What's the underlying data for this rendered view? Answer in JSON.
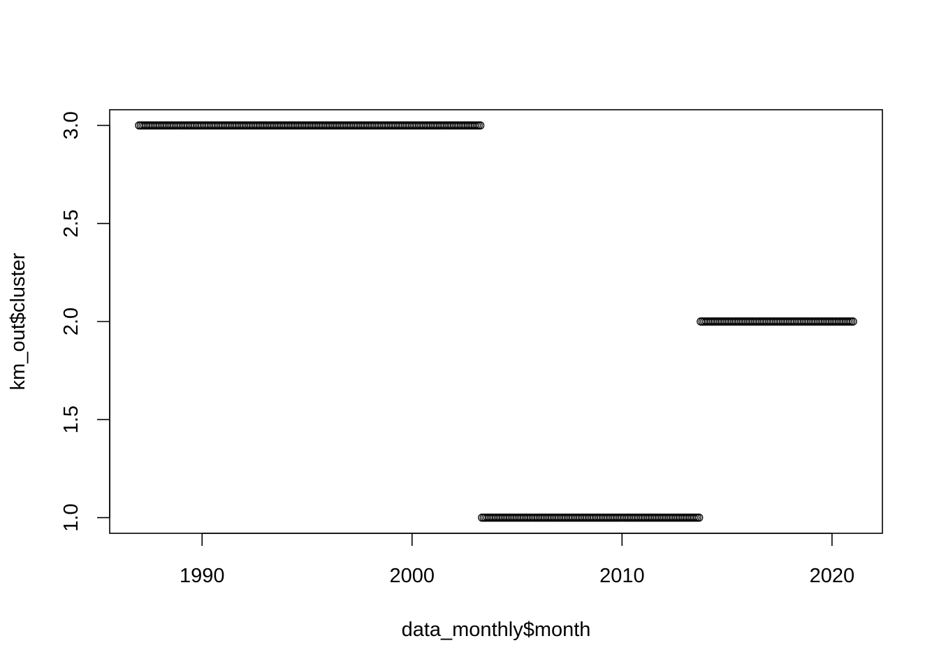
{
  "chart_data": {
    "type": "scatter",
    "title": "",
    "xlabel": "data_monthly$month",
    "ylabel": "km_out$cluster",
    "xlim": [
      1985.6,
      2022.4
    ],
    "ylim": [
      0.92,
      3.08
    ],
    "x_ticks": [
      1990,
      2000,
      2010,
      2020
    ],
    "x_tick_labels": [
      "1990",
      "2000",
      "2010",
      "2020"
    ],
    "y_ticks": [
      1.0,
      1.5,
      2.0,
      2.5,
      3.0
    ],
    "y_tick_labels": [
      "1.0",
      "1.5",
      "2.0",
      "2.5",
      "3.0"
    ],
    "grid": false,
    "marker": "open-circle",
    "series": [
      {
        "cluster": 3,
        "x_start": "1987-01",
        "x_end": "2003-04",
        "step": "monthly"
      },
      {
        "cluster": 1,
        "x_start": "2003-05",
        "x_end": "2013-09",
        "step": "monthly"
      },
      {
        "cluster": 2,
        "x_start": "2013-10",
        "x_end": "2021-01",
        "step": "monthly"
      }
    ]
  }
}
